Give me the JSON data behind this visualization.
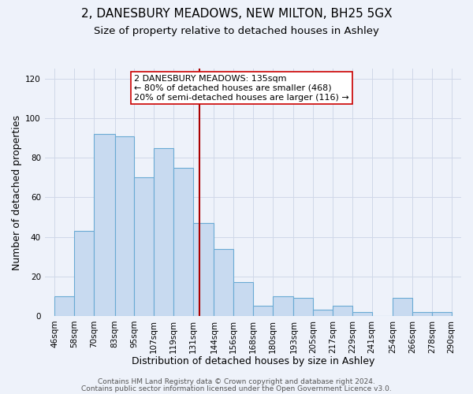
{
  "title": "2, DANESBURY MEADOWS, NEW MILTON, BH25 5GX",
  "subtitle": "Size of property relative to detached houses in Ashley",
  "xlabel": "Distribution of detached houses by size in Ashley",
  "ylabel": "Number of detached properties",
  "bar_left_edges": [
    46,
    58,
    70,
    83,
    95,
    107,
    119,
    131,
    144,
    156,
    168,
    180,
    193,
    205,
    217,
    229,
    241,
    254,
    266,
    278
  ],
  "bar_widths": [
    12,
    12,
    13,
    12,
    12,
    12,
    12,
    13,
    12,
    12,
    12,
    13,
    12,
    12,
    12,
    12,
    13,
    12,
    12,
    12
  ],
  "bar_heights": [
    10,
    43,
    92,
    91,
    70,
    85,
    75,
    47,
    34,
    17,
    5,
    10,
    9,
    3,
    5,
    2,
    0,
    9,
    2,
    2
  ],
  "bar_color": "#c8daf0",
  "bar_edge_color": "#6aaad4",
  "grid_color": "#d0d8e8",
  "background_color": "#eef2fa",
  "vline_x": 135,
  "vline_color": "#aa0000",
  "ylim": [
    0,
    125
  ],
  "yticks": [
    0,
    20,
    40,
    60,
    80,
    100,
    120
  ],
  "xtick_labels": [
    "46sqm",
    "58sqm",
    "70sqm",
    "83sqm",
    "95sqm",
    "107sqm",
    "119sqm",
    "131sqm",
    "144sqm",
    "156sqm",
    "168sqm",
    "180sqm",
    "193sqm",
    "205sqm",
    "217sqm",
    "229sqm",
    "241sqm",
    "254sqm",
    "266sqm",
    "278sqm",
    "290sqm"
  ],
  "xtick_positions": [
    46,
    58,
    70,
    83,
    95,
    107,
    119,
    131,
    144,
    156,
    168,
    180,
    193,
    205,
    217,
    229,
    241,
    254,
    266,
    278,
    290
  ],
  "annotation_lines": [
    "2 DANESBURY MEADOWS: 135sqm",
    "← 80% of detached houses are smaller (468)",
    "20% of semi-detached houses are larger (116) →"
  ],
  "annotation_box_color": "#ffffff",
  "annotation_box_edge": "#cc0000",
  "footer_line1": "Contains HM Land Registry data © Crown copyright and database right 2024.",
  "footer_line2": "Contains public sector information licensed under the Open Government Licence v3.0.",
  "title_fontsize": 11,
  "subtitle_fontsize": 9.5,
  "xlabel_fontsize": 9,
  "ylabel_fontsize": 9,
  "tick_fontsize": 7.5,
  "annotation_fontsize": 8,
  "footer_fontsize": 6.5
}
